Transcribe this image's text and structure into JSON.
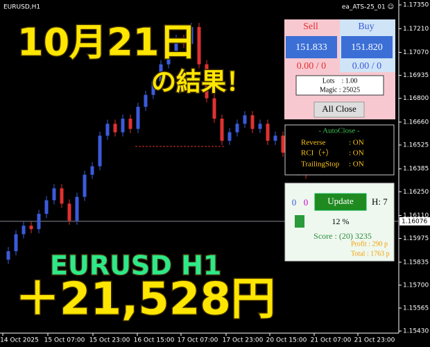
{
  "chart_data": {
    "type": "candlestick",
    "symbol": "EURUSD,H1",
    "ea_name": "ea_ATS-25_01 ☺",
    "x_labels": [
      "14 Oct 2025",
      "15 Oct 07:00",
      "15 Oct 23:00",
      "16 Oct 15:00",
      "17 Oct 07:00",
      "17 Oct 23:00",
      "20 Oct 15:00",
      "21 Oct 07:00",
      "21 Oct 23:00"
    ],
    "open": [
      1.1585,
      1.159,
      1.16,
      1.1605,
      1.1603,
      1.1612,
      1.162,
      1.1627,
      1.1618,
      1.1608,
      1.1622,
      1.1635,
      1.164,
      1.1658,
      1.1665,
      1.166,
      1.1668,
      1.1662,
      1.1675,
      1.1682,
      1.169,
      1.17,
      1.1708,
      1.1715,
      1.1712,
      1.1722,
      1.17,
      1.168,
      1.1668,
      1.1655,
      1.166,
      1.1665,
      1.167,
      1.1662,
      1.1665,
      1.1655,
      1.1658,
      1.1648,
      1.1642,
      1.1637
    ],
    "close": [
      1.159,
      1.16,
      1.1605,
      1.1603,
      1.1612,
      1.162,
      1.1627,
      1.1618,
      1.1608,
      1.1622,
      1.1635,
      1.164,
      1.1658,
      1.1665,
      1.166,
      1.1668,
      1.1662,
      1.1675,
      1.1682,
      1.169,
      1.17,
      1.1708,
      1.1715,
      1.1712,
      1.1722,
      1.17,
      1.168,
      1.1668,
      1.1655,
      1.166,
      1.1665,
      1.167,
      1.1662,
      1.1665,
      1.1655,
      1.1658,
      1.1648,
      1.1642,
      1.1637,
      1.1635
    ],
    "up_color": "#3b5bdb",
    "down_color": "#e03131",
    "ylim": [
      1.1543,
      1.1735
    ],
    "yticks": [
      {
        "value": 1.1735,
        "label": "1.17350"
      },
      {
        "value": 1.1721,
        "label": "1.17210"
      },
      {
        "value": 1.1707,
        "label": "1.17070"
      },
      {
        "value": 1.16935,
        "label": "1.16935"
      },
      {
        "value": 1.168,
        "label": "1.16800"
      },
      {
        "value": 1.1666,
        "label": "1.16660"
      },
      {
        "value": 1.16525,
        "label": "1.16525"
      },
      {
        "value": 1.16385,
        "label": "1.16385"
      },
      {
        "value": 1.1625,
        "label": "1.16250"
      },
      {
        "value": 1.1611,
        "label": "1.16110"
      },
      {
        "value": 1.15975,
        "label": "1.15975"
      },
      {
        "value": 1.15835,
        "label": "1.15835"
      },
      {
        "value": 1.157,
        "label": "1.15700"
      },
      {
        "value": 1.15565,
        "label": "1.15565"
      },
      {
        "value": 1.1543,
        "label": "1.15430"
      }
    ],
    "current_price": {
      "value": 1.16076,
      "label": "1.16076"
    }
  },
  "overlay": {
    "date": "10月21日",
    "result": "の結果！",
    "pair": "EURUSD H1",
    "profit": "＋21,528円"
  },
  "panel": {
    "sell": "Sell",
    "buy": "Buy",
    "sell_price": "151.833",
    "buy_price": "151.820",
    "sell_pos": "0.00 / 0",
    "buy_pos": "0.00 / 0",
    "lots": "Lots　: 1.00",
    "magic": "Magic : 25025",
    "all_close": "All Close"
  },
  "autoclose": {
    "title": "- AutoClose -",
    "reverse": "Reverse",
    "reverse_val": ": ON",
    "rci": "RCI（+）",
    "rci_val": ": ON",
    "trailing": "TrailingStop",
    "trailing_val": ": ON"
  },
  "status": {
    "count_a": "0",
    "count_b": "0",
    "update": "Update",
    "hour": "H: 7",
    "percent": "12 %",
    "score": "Score : (20) 3235",
    "profit": "Profit : 290 p",
    "total": "Total : 1763 p"
  }
}
